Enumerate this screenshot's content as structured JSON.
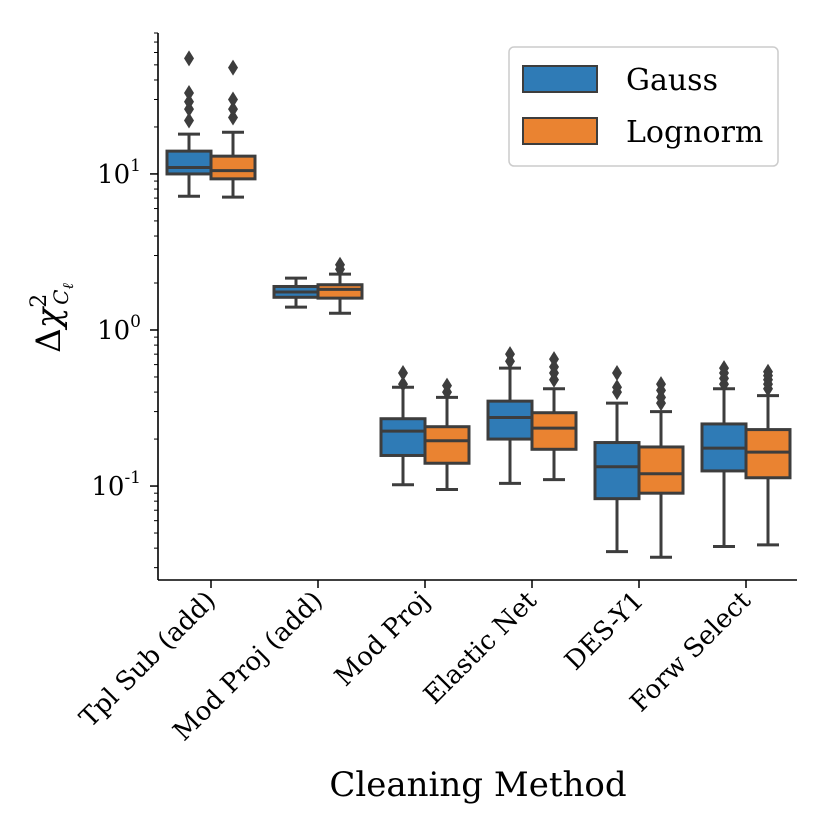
{
  "chart_data": {
    "type": "box",
    "title": "",
    "xlabel": "Cleaning Method",
    "ylabel": "Δχ²_{Cℓ}",
    "ylabel_parts": {
      "delta": "Δ",
      "chi": "χ",
      "power": "2",
      "sub": "C",
      "sub2": "ℓ"
    },
    "yscale": "log",
    "ylim": [
      0.025,
      80
    ],
    "ytick_labels": [
      {
        "value": 0.1,
        "base": "10",
        "exp": "-1"
      },
      {
        "value": 1,
        "base": "10",
        "exp": "0"
      },
      {
        "value": 10,
        "base": "10",
        "exp": "1"
      }
    ],
    "categories": [
      "Tpl Sub (add)",
      "Mod Proj (add)",
      "Mod Proj",
      "Elastic Net",
      "DES-Y1",
      "Forw Select"
    ],
    "legend": {
      "location": "top-right",
      "entries": [
        "Gauss",
        "Lognorm"
      ]
    },
    "colors": {
      "Gauss": "#2f7bb6",
      "Lognorm": "#ea8331",
      "line": "#3d3d3d"
    },
    "series": [
      {
        "name": "Gauss",
        "boxes": [
          {
            "whislo": 7.2,
            "q1": 10.0,
            "med": 11.0,
            "q3": 14.0,
            "whishi": 18.0,
            "fliers": [
              22,
              26,
              29,
              33,
              55
            ]
          },
          {
            "whislo": 1.4,
            "q1": 1.62,
            "med": 1.75,
            "q3": 1.9,
            "whishi": 2.15,
            "fliers": []
          },
          {
            "whislo": 0.102,
            "q1": 0.157,
            "med": 0.225,
            "q3": 0.27,
            "whishi": 0.43,
            "fliers": [
              0.45,
              0.53
            ]
          },
          {
            "whislo": 0.104,
            "q1": 0.2,
            "med": 0.275,
            "q3": 0.35,
            "whishi": 0.57,
            "fliers": [
              0.63,
              0.7
            ]
          },
          {
            "whislo": 0.038,
            "q1": 0.083,
            "med": 0.133,
            "q3": 0.19,
            "whishi": 0.34,
            "fliers": [
              0.4,
              0.43,
              0.53
            ]
          },
          {
            "whislo": 0.041,
            "q1": 0.125,
            "med": 0.175,
            "q3": 0.25,
            "whishi": 0.42,
            "fliers": [
              0.45,
              0.49,
              0.53,
              0.57
            ]
          }
        ]
      },
      {
        "name": "Lognorm",
        "boxes": [
          {
            "whislo": 7.1,
            "q1": 9.3,
            "med": 10.5,
            "q3": 13.0,
            "whishi": 18.5,
            "fliers": [
              23,
              26,
              30,
              48
            ]
          },
          {
            "whislo": 1.28,
            "q1": 1.6,
            "med": 1.82,
            "q3": 1.95,
            "whishi": 2.28,
            "fliers": [
              2.45,
              2.62
            ]
          },
          {
            "whislo": 0.095,
            "q1": 0.14,
            "med": 0.195,
            "q3": 0.24,
            "whishi": 0.37,
            "fliers": [
              0.4,
              0.44
            ]
          },
          {
            "whislo": 0.11,
            "q1": 0.172,
            "med": 0.235,
            "q3": 0.295,
            "whishi": 0.42,
            "fliers": [
              0.48,
              0.53,
              0.58,
              0.65
            ]
          },
          {
            "whislo": 0.035,
            "q1": 0.09,
            "med": 0.12,
            "q3": 0.178,
            "whishi": 0.3,
            "fliers": [
              0.34,
              0.37,
              0.41,
              0.45
            ]
          },
          {
            "whislo": 0.042,
            "q1": 0.113,
            "med": 0.165,
            "q3": 0.23,
            "whishi": 0.38,
            "fliers": [
              0.42,
              0.45,
              0.48,
              0.51,
              0.54
            ]
          }
        ]
      }
    ]
  }
}
